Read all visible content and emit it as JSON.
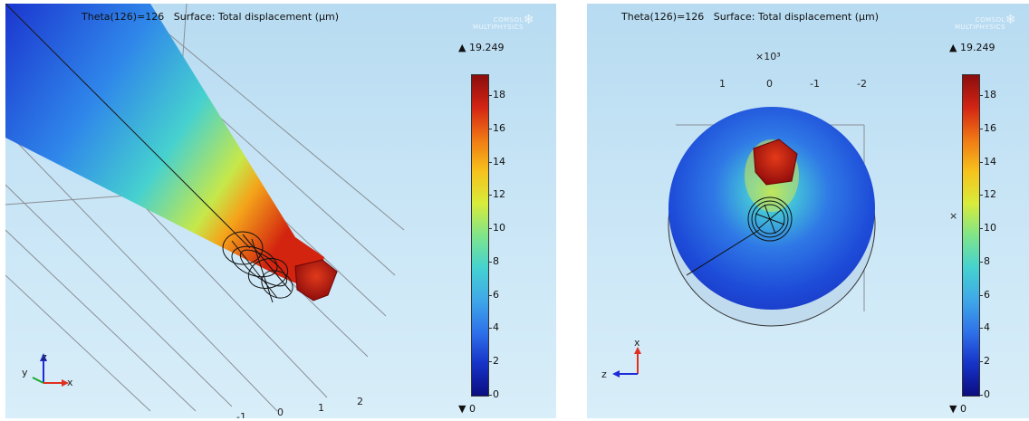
{
  "left_panel": {
    "header": "Theta(126)=126   Surface: Total displacement (μm)",
    "logo_line1": "COMSOL",
    "logo_line2": "MULTIPHYSICS",
    "max_label": "19.249",
    "min_label": "0",
    "colorbar_ticks": [
      "0",
      "2",
      "4",
      "6",
      "8",
      "10",
      "12",
      "14",
      "16",
      "18"
    ],
    "axis_numbers": [
      "-1",
      "0",
      "1",
      "2"
    ],
    "triad": {
      "up": "z",
      "left": "y",
      "right": "x"
    }
  },
  "right_panel": {
    "header": "Theta(126)=126   Surface: Total displacement (μm)",
    "logo_line1": "COMSOL",
    "logo_line2": "MULTIPHYSICS",
    "max_label": "19.249",
    "min_label": "0",
    "colorbar_ticks": [
      "0",
      "2",
      "4",
      "6",
      "8",
      "10",
      "12",
      "14",
      "16",
      "18"
    ],
    "scale_label": "×10³",
    "axis_numbers": [
      "1",
      "0",
      "-1",
      "-2"
    ],
    "side_label": "×",
    "triad": {
      "up": "x",
      "left": "z"
    }
  },
  "colors": {
    "background_top": "#b7dbf1",
    "low": "#0b0d80",
    "high": "#8a0d0d"
  }
}
